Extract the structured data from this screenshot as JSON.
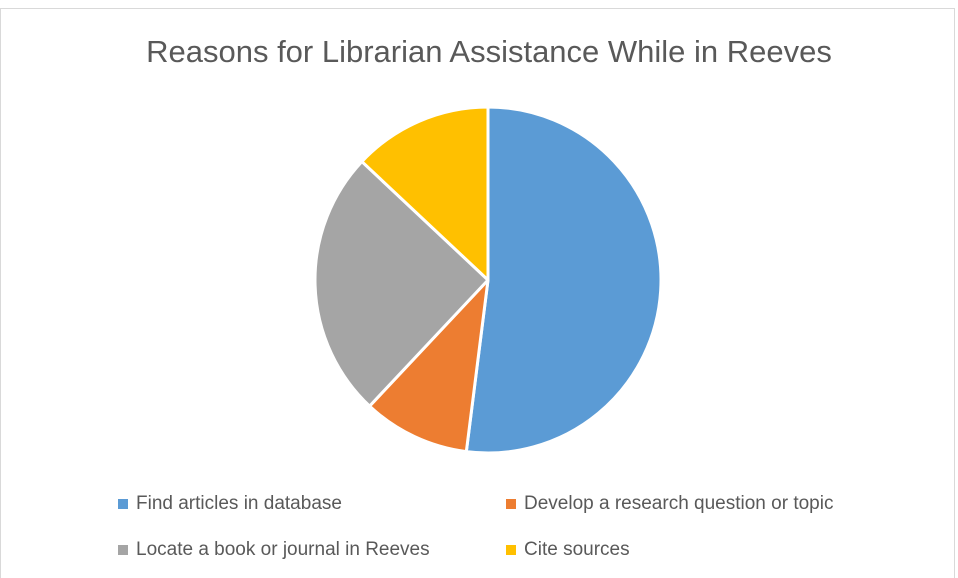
{
  "chart_data": {
    "type": "pie",
    "title": "Reasons for Librarian Assistance While in Reeves",
    "categories": [
      "Find articles in database",
      "Develop a research question or topic",
      "Locate a book or journal in Reeves",
      "Cite sources"
    ],
    "values": [
      52,
      10,
      25,
      13
    ],
    "colors": [
      "#5B9BD5",
      "#ED7D31",
      "#A5A5A5",
      "#FFC000"
    ],
    "start_angle_deg": 0,
    "direction": "clockwise",
    "legend_position": "bottom"
  }
}
